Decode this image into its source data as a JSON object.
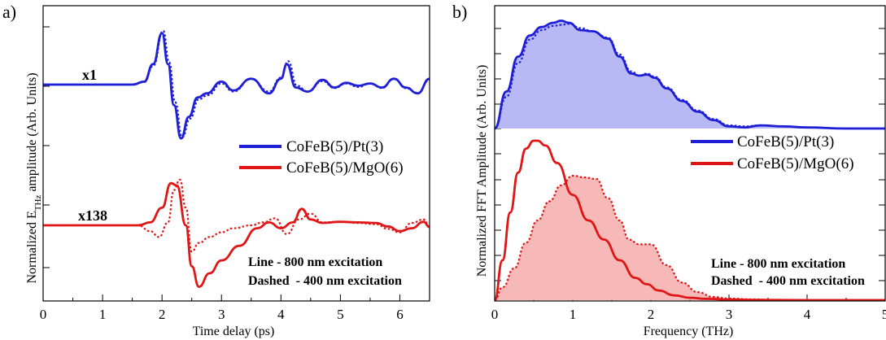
{
  "chart_data": [
    {
      "type": "line",
      "panel_label": "a)",
      "xlabel": "Time delay (ps)",
      "ylabel_prefix": "Normalized E",
      "ylabel_sub": "THz",
      "ylabel_suffix": " amplitude (Arb. Units)",
      "xlim": [
        0,
        6.5
      ],
      "xticks": [
        "0",
        "1",
        "2",
        "3",
        "4",
        "5",
        "6"
      ],
      "y_ticks_labeled": false,
      "legend": {
        "placement": "right-middle",
        "entries": [
          {
            "label": "CoFeB(5)/Pt(3)",
            "color": "#1f1fd8"
          },
          {
            "label": "CoFeB(5)/MgO(6)",
            "color": "#e01515"
          }
        ]
      },
      "scale_labels": [
        {
          "text": "x1",
          "color": "#1f1fd8"
        },
        {
          "text": "x138",
          "color": "#e01515"
        }
      ],
      "annotation_lines": [
        "Line - 800 nm excitation",
        "Dashed  - 400 nm excitation"
      ],
      "series": [
        {
          "name": "CoFeB(5)/Pt(3)",
          "color": "#1f1fd8",
          "style": "solid",
          "x": [
            0,
            1.5,
            1.7,
            1.85,
            2.0,
            2.1,
            2.2,
            2.32,
            2.45,
            2.6,
            2.75,
            3.0,
            3.2,
            3.5,
            3.8,
            4.0,
            4.1,
            4.25,
            4.45,
            4.7,
            4.9,
            5.1,
            5.3,
            5.5,
            5.7,
            5.9,
            6.1,
            6.3,
            6.5
          ],
          "y": [
            0,
            0,
            0.05,
            0.35,
            0.88,
            0.35,
            -0.35,
            -0.92,
            -0.55,
            -0.22,
            -0.15,
            0.05,
            -0.1,
            0.1,
            -0.15,
            0.1,
            0.35,
            -0.05,
            -0.12,
            0.08,
            -0.05,
            0.03,
            -0.02,
            0.02,
            -0.05,
            0.1,
            -0.05,
            -0.15,
            0.1
          ]
        },
        {
          "name": "CoFeB(5)/Pt(3) (400 nm)",
          "color": "#1f1fd8",
          "style": "dotted",
          "x": [
            0,
            1.5,
            1.7,
            1.85,
            2.02,
            2.12,
            2.22,
            2.34,
            2.47,
            2.62,
            2.77,
            3.0,
            3.2,
            3.5,
            3.8,
            4.0,
            4.12,
            4.27,
            4.45,
            4.7,
            4.9,
            5.1,
            5.3,
            5.5,
            5.7,
            5.9,
            6.1,
            6.3,
            6.5
          ],
          "y": [
            0,
            0,
            0.04,
            0.32,
            0.92,
            0.38,
            -0.3,
            -0.9,
            -0.58,
            -0.25,
            -0.18,
            0.02,
            -0.12,
            0.1,
            -0.12,
            0.12,
            0.4,
            -0.02,
            -0.12,
            0.06,
            -0.06,
            0.02,
            -0.04,
            0.02,
            -0.06,
            0.1,
            -0.06,
            -0.14,
            0.08
          ]
        },
        {
          "name": "CoFeB(5)/MgO(6)",
          "color": "#e01515",
          "style": "solid",
          "x": [
            0,
            1.6,
            1.8,
            2.0,
            2.15,
            2.25,
            2.4,
            2.5,
            2.62,
            2.8,
            3.0,
            3.3,
            3.6,
            3.8,
            4.0,
            4.2,
            4.35,
            4.5,
            4.7,
            5.0,
            5.3,
            5.6,
            5.8,
            6.0,
            6.2,
            6.4,
            6.5
          ],
          "y": [
            0,
            0,
            0.05,
            0.3,
            0.72,
            0.68,
            0.0,
            -0.7,
            -1.05,
            -0.82,
            -0.6,
            -0.35,
            -0.05,
            0.05,
            -0.05,
            0.05,
            0.28,
            0.1,
            0.04,
            0.06,
            0.05,
            0.04,
            -0.02,
            -0.1,
            -0.05,
            0.06,
            -0.03
          ]
        },
        {
          "name": "CoFeB(5)/MgO(6) (400 nm)",
          "color": "#e01515",
          "style": "dotted",
          "x": [
            0,
            1.6,
            1.8,
            1.95,
            2.1,
            2.2,
            2.3,
            2.4,
            2.5,
            2.62,
            2.8,
            3.0,
            3.2,
            3.5,
            3.7,
            3.9,
            4.1,
            4.3,
            4.5,
            4.7,
            5.0,
            5.3,
            5.6,
            5.8,
            6.0,
            6.2,
            6.4,
            6.5
          ],
          "y": [
            0,
            0,
            -0.1,
            -0.2,
            0.05,
            0.6,
            0.78,
            0.3,
            -0.45,
            -0.3,
            -0.2,
            -0.12,
            -0.05,
            0.0,
            0.05,
            0.12,
            -0.15,
            0.1,
            0.2,
            0.05,
            0.06,
            0.04,
            0.02,
            -0.06,
            -0.12,
            0.04,
            0.1,
            -0.02
          ]
        }
      ]
    },
    {
      "type": "area",
      "panel_label": "b)",
      "xlabel": "Frequency (THz)",
      "ylabel": "Normalized FFT Amplitude (Arb. Units)",
      "xlim": [
        0,
        5
      ],
      "xticks": [
        "0",
        "1",
        "2",
        "3",
        "4",
        "5"
      ],
      "y_ticks_labeled": false,
      "legend": {
        "placement": "right-middle",
        "entries": [
          {
            "label": "CoFeB(5)/Pt(3)",
            "color": "#1f1fd8"
          },
          {
            "label": "CoFeB(5)/MgO(6)",
            "color": "#e01515"
          }
        ]
      },
      "annotation_lines": [
        "Line - 800 nm excitation",
        "Dashed  - 400 nm excitation"
      ],
      "fill_colors": {
        "blue": "#b8b8f5",
        "red": "#f7b8b8"
      },
      "series": [
        {
          "name": "CoFeB(5)/Pt(3)",
          "color": "#1f1fd8",
          "style": "solid",
          "filled": true,
          "group": "top",
          "x": [
            0,
            0.15,
            0.3,
            0.45,
            0.6,
            0.75,
            0.85,
            0.95,
            1.1,
            1.25,
            1.45,
            1.6,
            1.75,
            1.85,
            1.95,
            2.05,
            2.2,
            2.4,
            2.6,
            2.8,
            3.0,
            3.2,
            3.4,
            3.7,
            4.0,
            4.5,
            5.0
          ],
          "y": [
            0,
            0.35,
            0.68,
            0.88,
            0.96,
            1.0,
            1.02,
            1.0,
            0.93,
            0.92,
            0.85,
            0.68,
            0.52,
            0.5,
            0.51,
            0.48,
            0.38,
            0.26,
            0.16,
            0.08,
            0.02,
            0.01,
            0.03,
            0.02,
            0.01,
            0.0,
            0.0
          ]
        },
        {
          "name": "CoFeB(5)/Pt(3) (400 nm)",
          "color": "#1f1fd8",
          "style": "dotted",
          "filled": false,
          "group": "top",
          "x": [
            0,
            0.15,
            0.3,
            0.45,
            0.6,
            0.75,
            0.85,
            0.95,
            1.1,
            1.25,
            1.45,
            1.6,
            1.75,
            1.85,
            1.95,
            2.05,
            2.2,
            2.4,
            2.6,
            2.8,
            3.0,
            3.2,
            3.4,
            3.7,
            4.0,
            4.5,
            5.0
          ],
          "y": [
            0,
            0.3,
            0.62,
            0.84,
            0.93,
            0.97,
            0.98,
            0.99,
            0.95,
            0.92,
            0.86,
            0.7,
            0.54,
            0.5,
            0.52,
            0.49,
            0.39,
            0.27,
            0.17,
            0.09,
            0.03,
            0.02,
            0.03,
            0.02,
            0.01,
            0.0,
            0.0
          ]
        },
        {
          "name": "CoFeB(5)/MgO(6)",
          "color": "#e01515",
          "style": "solid",
          "filled": false,
          "group": "bottom",
          "x": [
            0,
            0.1,
            0.2,
            0.3,
            0.4,
            0.5,
            0.55,
            0.65,
            0.8,
            1.0,
            1.2,
            1.4,
            1.6,
            1.8,
            1.95,
            2.1,
            2.3,
            2.5,
            2.7,
            3.0,
            3.3,
            3.6,
            4.0,
            4.5,
            5.0
          ],
          "y": [
            0,
            0.25,
            0.55,
            0.8,
            0.95,
            1.0,
            1.0,
            0.97,
            0.86,
            0.66,
            0.5,
            0.38,
            0.25,
            0.14,
            0.1,
            0.06,
            0.03,
            0.015,
            0.008,
            0.004,
            0.002,
            0.001,
            0.0,
            0.0,
            0.0
          ]
        },
        {
          "name": "CoFeB(5)/MgO(6) (400 nm)",
          "color": "#e01515",
          "style": "dotted",
          "filled": true,
          "group": "bottom",
          "x": [
            0,
            0.1,
            0.25,
            0.4,
            0.55,
            0.7,
            0.85,
            1.0,
            1.15,
            1.3,
            1.45,
            1.6,
            1.72,
            1.85,
            2.0,
            2.2,
            2.4,
            2.6,
            2.8,
            3.0,
            3.3,
            3.6,
            4.0,
            4.5,
            5.0
          ],
          "y": [
            0,
            0.08,
            0.2,
            0.36,
            0.5,
            0.62,
            0.72,
            0.78,
            0.77,
            0.76,
            0.64,
            0.5,
            0.38,
            0.35,
            0.35,
            0.22,
            0.11,
            0.05,
            0.02,
            0.01,
            0.005,
            0.0,
            0.0,
            0.0,
            0.0
          ]
        }
      ]
    }
  ]
}
